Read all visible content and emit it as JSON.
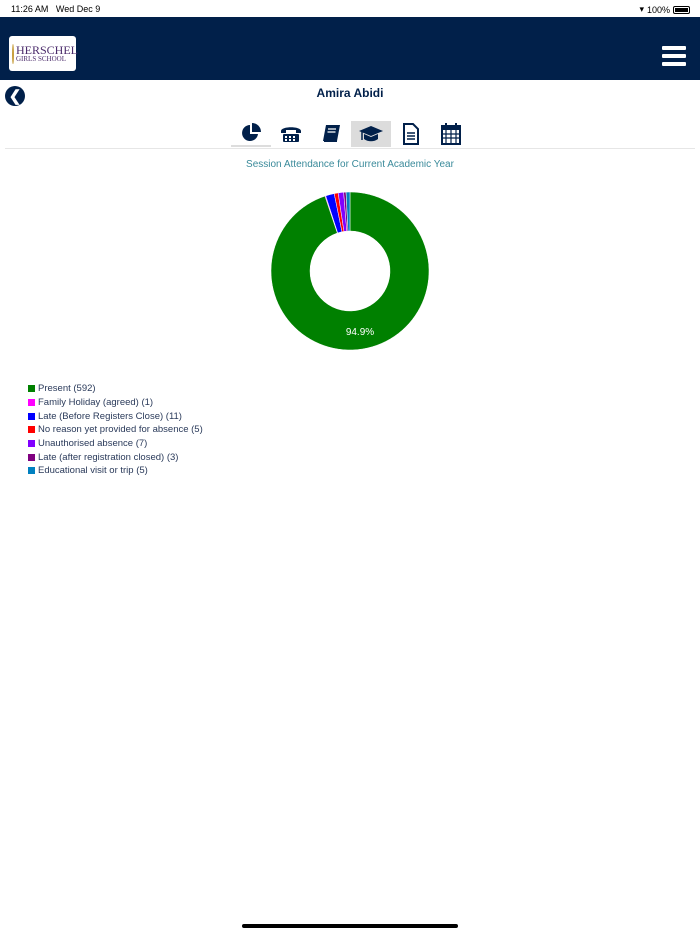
{
  "status_bar": {
    "time": "11:26 AM",
    "date": "Wed Dec 9",
    "battery": "100%"
  },
  "header": {
    "logo_text_1": "HERSCHEL",
    "logo_text_2": "GIRLS SCHOOL"
  },
  "student": {
    "name": "Amira Abidi"
  },
  "tabs": [
    {
      "icon": "pie-chart-icon",
      "selected": false
    },
    {
      "icon": "telephone-icon",
      "selected": false
    },
    {
      "icon": "book-icon",
      "selected": false
    },
    {
      "icon": "graduation-cap-icon",
      "selected": true
    },
    {
      "icon": "document-icon",
      "selected": false
    },
    {
      "icon": "calendar-icon",
      "selected": false
    }
  ],
  "chart_data": {
    "type": "pie",
    "donut": true,
    "title": "Session Attendance for Current Academic Year",
    "categories": [
      "Present",
      "Family Holiday (agreed)",
      "Late (Before Registers Close)",
      "No reason yet provided for absence",
      "Unauthorised absence",
      "Late (after registration closed)",
      "Educational visit or trip"
    ],
    "values": [
      592,
      1,
      11,
      5,
      7,
      3,
      5
    ],
    "colors": [
      "#008000",
      "#ff00ff",
      "#0000ff",
      "#ff0000",
      "#8000ff",
      "#800080",
      "#0080c0"
    ],
    "data_labels": [
      "94.9%"
    ],
    "legend": [
      "Present (592)",
      "Family Holiday (agreed) (1)",
      "Late (Before Registers Close) (11)",
      "No reason yet provided for absence (5)",
      "Unauthorised absence (7)",
      "Late (after registration closed) (3)",
      "Educational visit or trip (5)"
    ],
    "legend_position": "bottom-left"
  }
}
